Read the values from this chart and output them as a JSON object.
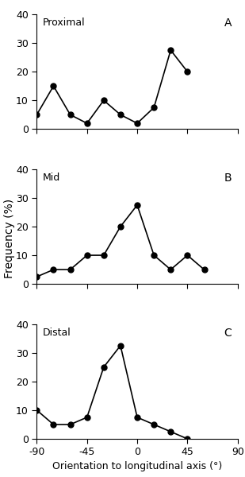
{
  "proximal_x": [
    -90,
    -75,
    -60,
    -45,
    -30,
    -15,
    0,
    15,
    30,
    45
  ],
  "proximal_y": [
    5,
    15,
    5,
    2,
    10,
    5,
    2,
    7.5,
    27.5,
    20
  ],
  "mid_x": [
    -90,
    -75,
    -60,
    -45,
    -30,
    -15,
    0,
    15,
    30,
    45,
    60
  ],
  "mid_y": [
    2.5,
    5,
    5,
    10,
    10,
    20,
    27.5,
    10,
    5,
    10,
    5
  ],
  "distal_x": [
    -90,
    -75,
    -60,
    -45,
    -30,
    -15,
    0,
    15,
    30,
    45
  ],
  "distal_y": [
    10,
    5,
    5,
    7.5,
    25,
    32.5,
    7.5,
    5,
    2.5,
    0
  ],
  "xlabel": "Orientation to longitudinal axis (°)",
  "ylabel": "Frequency (%)",
  "ylim": [
    0,
    40
  ],
  "yticks": [
    0,
    10,
    20,
    30,
    40
  ],
  "xticks": [
    -90,
    -45,
    0,
    45,
    90
  ],
  "label_A": "A",
  "label_B": "B",
  "label_C": "C",
  "label_proximal": "Proximal",
  "label_mid": "Mid",
  "label_distal": "Distal",
  "line_color": "#000000",
  "marker": "o",
  "markersize": 5,
  "linewidth": 1.2,
  "bg_color": "#ffffff",
  "label_color": "#000000",
  "region_label_color": "#000000"
}
